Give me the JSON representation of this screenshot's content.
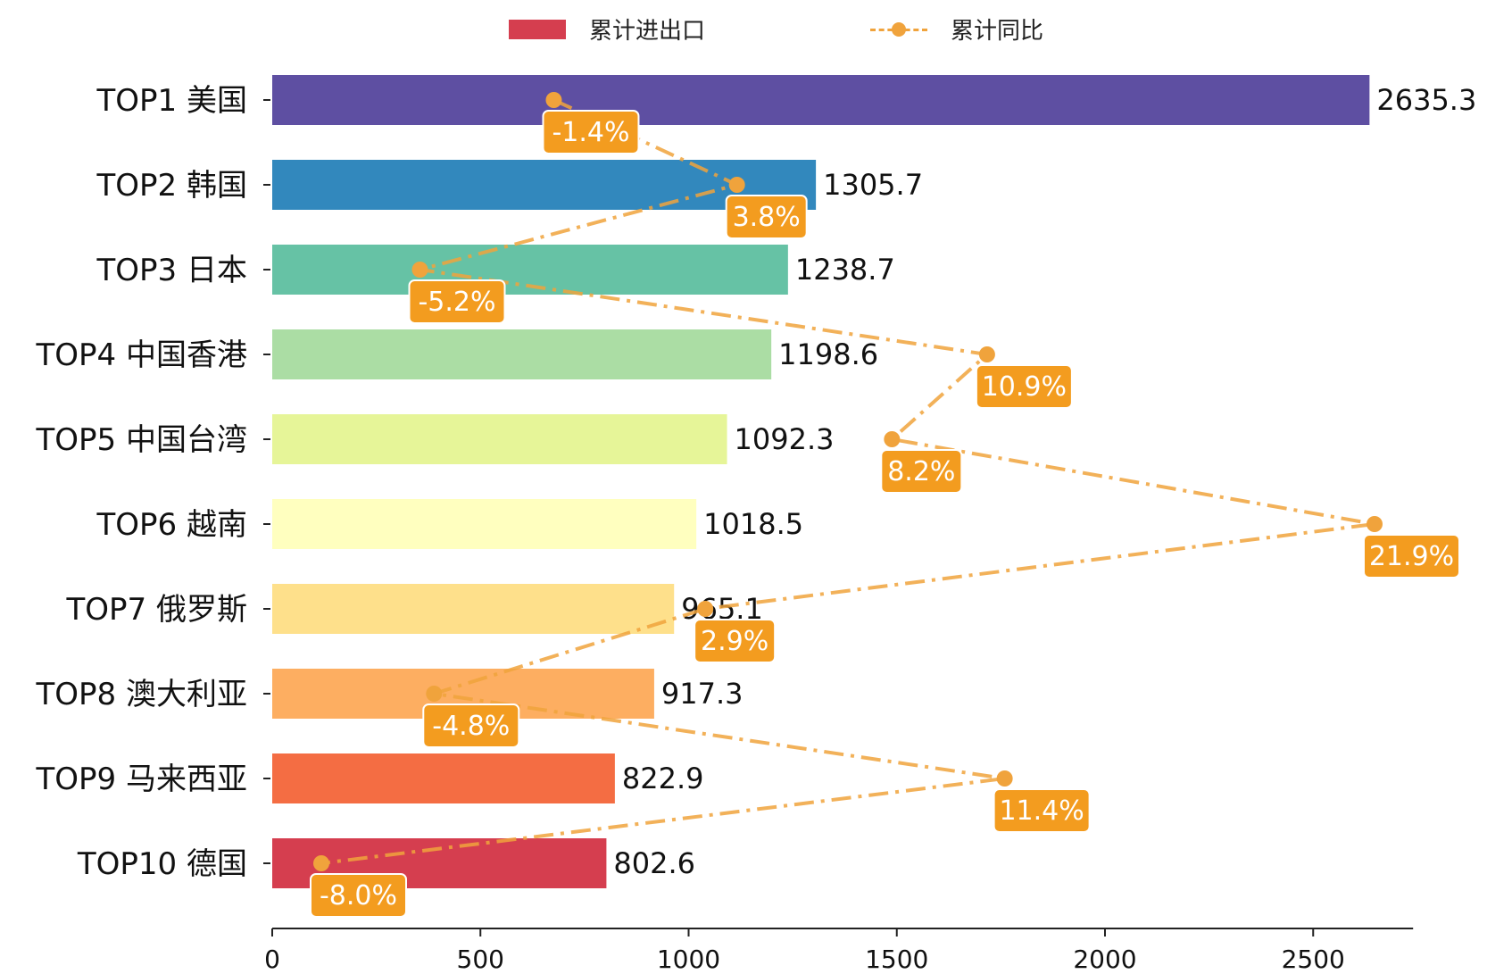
{
  "legend": {
    "bar_label": "累计进出口",
    "line_label": "累计同比"
  },
  "chart_data": {
    "type": "bar",
    "orientation": "horizontal",
    "categories": [
      "TOP1 美国",
      "TOP2 韩国",
      "TOP3 日本",
      "TOP4 中国香港",
      "TOP5 中国台湾",
      "TOP6 越南",
      "TOP7 俄罗斯",
      "TOP8 澳大利亚",
      "TOP9 马来西亚",
      "TOP10 德国"
    ],
    "series": [
      {
        "name": "累计进出口",
        "type": "bar",
        "values": [
          2635.3,
          1305.7,
          1238.7,
          1198.6,
          1092.3,
          1018.5,
          965.1,
          917.3,
          822.9,
          802.6
        ],
        "value_labels": [
          "2635.3",
          "1305.7",
          "1238.7",
          "1198.6",
          "1092.3",
          "1018.5",
          "965.1",
          "917.3",
          "822.9",
          "802.6"
        ],
        "colors": [
          "#5e4fa2",
          "#3288bd",
          "#66c2a5",
          "#abdda4",
          "#e6f598",
          "#ffffbf",
          "#fee08b",
          "#fdae61",
          "#f46d43",
          "#d53e4f"
        ]
      },
      {
        "name": "累计同比",
        "type": "line",
        "values": [
          -1.4,
          3.8,
          -5.2,
          10.9,
          8.2,
          21.9,
          2.9,
          -4.8,
          11.4,
          -8.0
        ],
        "value_labels": [
          "-1.4%",
          "3.8%",
          "-5.2%",
          "10.9%",
          "8.2%",
          "21.9%",
          "2.9%",
          "-4.8%",
          "11.4%",
          "-8.0%"
        ],
        "color": "#f0a33c",
        "label_box_color": "#f39c1f"
      }
    ],
    "xaxis": {
      "ticks": [
        0,
        500,
        1000,
        1500,
        2000,
        2500
      ],
      "tick_labels": [
        "0",
        "500",
        "1000",
        "1500",
        "2000",
        "2500"
      ],
      "xlim": [
        0,
        2770
      ]
    },
    "legend_position": "top-center",
    "grid": false
  }
}
